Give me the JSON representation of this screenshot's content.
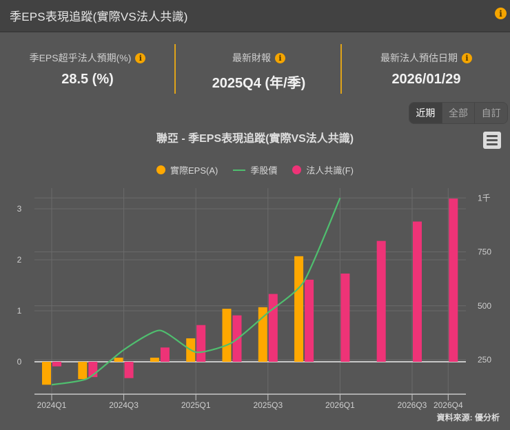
{
  "header": {
    "title": "季EPS表現追蹤(實際VS法人共識)",
    "info_glyph": "i"
  },
  "stats": [
    {
      "label": "季EPS超乎法人預期(%)",
      "value": "28.5 (%)",
      "info_glyph": "i"
    },
    {
      "label": "最新財報",
      "value": "2025Q4 (年/季)",
      "info_glyph": "i"
    },
    {
      "label": "最新法人預估日期",
      "value": "2026/01/29",
      "info_glyph": "i"
    }
  ],
  "range_buttons": [
    {
      "label": "近期",
      "active": true
    },
    {
      "label": "全部",
      "active": false
    },
    {
      "label": "自訂",
      "active": false
    }
  ],
  "menu_icon": "hamburger-menu-icon",
  "legend": [
    {
      "label": "實際EPS(A)",
      "color": "#ffa800",
      "shape": "circle"
    },
    {
      "label": "季股價",
      "color": "#4fbf6f",
      "shape": "line"
    },
    {
      "label": "法人共識(F)",
      "color": "#ee3377",
      "shape": "circle"
    }
  ],
  "source": "資料來源: 優分析",
  "colors": {
    "accent": "#f5a500",
    "divider": "#e0a419",
    "background": "#565656",
    "header": "#424242",
    "gridline": "#6a6a6a",
    "axis": "#c8c8c8"
  },
  "chart_data": {
    "type": "bar",
    "title": "聯亞 - 季EPS表現追蹤(實際VS法人共識)",
    "xlabel": "",
    "ylabel": "",
    "categories": [
      "2024Q1",
      "2024Q2",
      "2024Q3",
      "2024Q4",
      "2025Q1",
      "2025Q2",
      "2025Q3",
      "2025Q4",
      "2026Q1",
      "2026Q2",
      "2026Q3",
      "2026Q4"
    ],
    "x_tick_labels": [
      "2024Q1",
      "2024Q3",
      "2025Q1",
      "2025Q3",
      "2026Q1",
      "2026Q3",
      "2026Q4"
    ],
    "series": [
      {
        "name": "實際EPS(A)",
        "type": "bar",
        "axis": "left",
        "color": "#ffa800",
        "values": [
          -0.45,
          -0.34,
          0.08,
          0.08,
          0.46,
          1.04,
          1.07,
          2.07,
          null,
          null,
          null,
          null
        ]
      },
      {
        "name": "季股價",
        "type": "line",
        "axis": "right",
        "color": "#4fbf6f",
        "values": [
          134,
          163,
          296,
          386,
          285,
          329,
          468,
          613,
          1000,
          null,
          null,
          null
        ]
      },
      {
        "name": "法人共識(F)",
        "type": "bar",
        "axis": "left",
        "color": "#ee3377",
        "values": [
          -0.09,
          -0.3,
          -0.32,
          0.28,
          0.72,
          0.91,
          1.33,
          1.61,
          1.73,
          2.37,
          2.75,
          3.2
        ]
      }
    ],
    "y_left": {
      "ticks": [
        0,
        1,
        2,
        3
      ],
      "tick_labels": [
        "0",
        "1",
        "2",
        "3"
      ],
      "range": [
        -0.6,
        3.4
      ]
    },
    "y_right": {
      "ticks": [
        250,
        500,
        750,
        1000
      ],
      "tick_labels": [
        "250",
        "500",
        "750",
        "1千"
      ],
      "range": [
        150,
        1000
      ]
    },
    "grid": true,
    "legend_position": "top"
  }
}
